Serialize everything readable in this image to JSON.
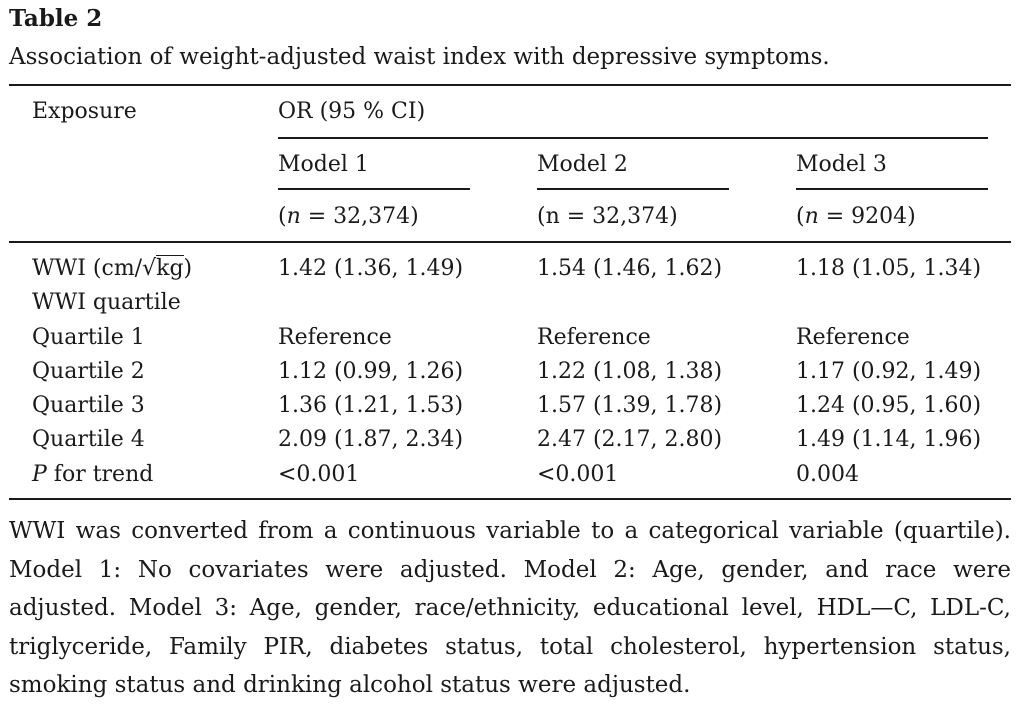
{
  "table_label": "Table 2",
  "caption": "Association of weight-adjusted waist index with depressive symptoms.",
  "header": {
    "exposure": "Exposure",
    "or_group": "OR (95 % CI)",
    "models": [
      {
        "name": "Model 1",
        "n_prefix": "(",
        "n_symbol": "n",
        "n_rest": " = 32,374)"
      },
      {
        "name": "Model 2",
        "n_prefix": "(",
        "n_symbol": "n",
        "n_rest": " = 32,374)"
      },
      {
        "name": "Model 3",
        "n_prefix": "(",
        "n_symbol": "n",
        "n_rest": " = 9204)"
      }
    ]
  },
  "rows": [
    {
      "label_pre": "WWI (cm/",
      "label_sqrt": "kg",
      "label_post": ")",
      "values": [
        "1.42 (1.36, 1.49)",
        "1.54 (1.46, 1.62)",
        "1.18 (1.05, 1.34)"
      ]
    },
    {
      "label": "WWI quartile",
      "values": [
        "",
        "",
        ""
      ]
    },
    {
      "label": "Quartile 1",
      "values": [
        "Reference",
        "Reference",
        "Reference"
      ]
    },
    {
      "label": "Quartile 2",
      "values": [
        "1.12 (0.99, 1.26)",
        "1.22 (1.08, 1.38)",
        "1.17 (0.92, 1.49)"
      ]
    },
    {
      "label": "Quartile 3",
      "values": [
        "1.36 (1.21, 1.53)",
        "1.57 (1.39, 1.78)",
        "1.24 (0.95, 1.60)"
      ]
    },
    {
      "label": "Quartile 4",
      "values": [
        "2.09 (1.87, 2.34)",
        "2.47 (2.17, 2.80)",
        "1.49 (1.14, 1.96)"
      ]
    },
    {
      "label_italic": "P",
      "label_rest": " for trend",
      "values": [
        "<0.001",
        "<0.001",
        "0.004"
      ]
    }
  ],
  "footnote": "WWI was converted from a continuous variable to a categorical variable (quartile). Model 1: No covariates were adjusted. Model 2: Age, gender, and race were adjusted. Model 3: Age, gender, race/ethnicity, educational level, HDL—C, LDL-C, triglyceride, Family PIR, diabetes status, total cholesterol, hypertension status, smoking status and drinking alcohol status were adjusted."
}
